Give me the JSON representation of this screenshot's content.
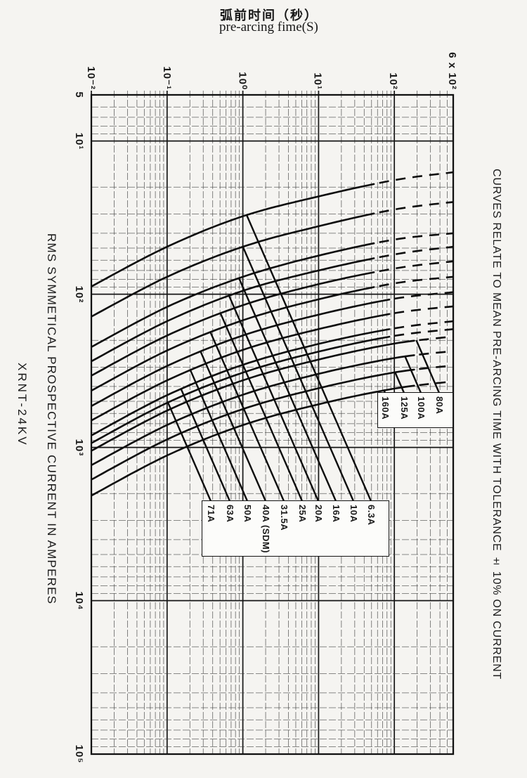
{
  "page": {
    "background": "#f5f4f1",
    "ink": "#141414"
  },
  "header": {
    "title_zh": "弧前时间（秒）",
    "title_en": "pre-arcing fime(S)"
  },
  "side_titles": {
    "left_axis_title": "RMS SYMMETICAL PROSPECTIVE CURRENT IN AMPERES",
    "model": "XRNT-24KV",
    "right_note": "CURVES RELATE TO MEAN PRE-ARCING TIME WITH TOLERANCE ± 10% ON CURRENT"
  },
  "axes": {
    "x_tick_labels": [
      "10⁻²",
      "10⁻¹",
      "10⁰",
      "10¹",
      "10²",
      "6 x 10²"
    ],
    "x_tick_values": [
      0.01,
      0.1,
      1,
      10,
      100,
      600
    ],
    "y_tick_labels": [
      "5",
      "10¹",
      "10²",
      "10³",
      "10⁴",
      "10⁵"
    ],
    "y_tick_values": [
      5,
      10,
      100,
      1000,
      10000,
      100000
    ]
  },
  "chart_data": {
    "type": "line",
    "title": "Pre-arcing time vs RMS symmetrical prospective current (XRNT-24KV fuses)",
    "xlabel": "pre-arcing time (s) — log scale, labels along top",
    "ylabel": "RMS symmetical prospective current in amperes — log scale, labels along left",
    "x_range": [
      0.01,
      600
    ],
    "y_range": [
      5,
      100000
    ],
    "grid": "log-log, major decade lines with 2-9 minor lines",
    "legend_position": "in-plot label boxes with leader lines",
    "tolerance_note": "curves are mean pre-arcing time, tolerance ± 10% on current",
    "sample_times_s": [
      0.01,
      0.1,
      1,
      10,
      100,
      600
    ],
    "series": [
      {
        "name": "6.3A",
        "currents_A": [
          89,
          49,
          31,
          23,
          18,
          16
        ],
        "dashed_after_s": 60
      },
      {
        "name": "10A",
        "currents_A": [
          140,
          77,
          49,
          36,
          28,
          25
        ],
        "dashed_after_s": 60
      },
      {
        "name": "16A",
        "currents_A": [
          221,
          121,
          77,
          56,
          44,
          40
        ],
        "dashed_after_s": 60
      },
      {
        "name": "20A",
        "currents_A": [
          274,
          150,
          95,
          70,
          55,
          49
        ],
        "dashed_after_s": 60
      },
      {
        "name": "25A",
        "currents_A": [
          340,
          186,
          118,
          86,
          68,
          61
        ],
        "dashed_after_s": 60
      },
      {
        "name": "31.5A",
        "currents_A": [
          426,
          233,
          148,
          108,
          85,
          77
        ],
        "dashed_after_s": 60
      },
      {
        "name": "40A (SDM)",
        "currents_A": [
          537,
          294,
          186,
          136,
          107,
          97
        ],
        "dashed_after_s": 90
      },
      {
        "name": "50A",
        "currents_A": [
          667,
          365,
          231,
          169,
          133,
          120
        ],
        "dashed_after_s": 90
      },
      {
        "name": "63A",
        "currents_A": [
          835,
          456,
          289,
          211,
          167,
          150
        ],
        "dashed_after_s": 90
      },
      {
        "name": "71A",
        "currents_A": [
          937,
          512,
          325,
          237,
          187,
          169
        ],
        "dashed_after_s": 90
      },
      {
        "name": "80A",
        "currents_A": [
          1052,
          575,
          365,
          267,
          210,
          189
        ],
        "dashed_after_s": 200
      },
      {
        "name": "100A",
        "currents_A": [
          1306,
          714,
          453,
          331,
          261,
          235
        ],
        "dashed_after_s": 200
      },
      {
        "name": "125A",
        "currents_A": [
          1622,
          887,
          562,
          411,
          324,
          292
        ],
        "dashed_after_s": 200
      },
      {
        "name": "160A",
        "currents_A": [
          2063,
          1128,
          715,
          523,
          413,
          371
        ],
        "dashed_after_s": 200
      }
    ]
  },
  "label_boxes": {
    "upper": {
      "labels": [
        {
          "text": "160A",
          "series": "160A"
        },
        {
          "text": "125A",
          "series": "125A"
        },
        {
          "text": "100A",
          "series": "100A"
        },
        {
          "text": "80A",
          "series": "80A"
        }
      ]
    },
    "lower": {
      "labels": [
        {
          "text": "71A",
          "series": "71A"
        },
        {
          "text": "63A",
          "series": "63A"
        },
        {
          "text": "50A",
          "series": "50A"
        },
        {
          "text": "40A (SDM)",
          "series": "40A (SDM)"
        },
        {
          "text": "31.5A",
          "series": "31.5A"
        },
        {
          "text": "25A",
          "series": "25A"
        },
        {
          "text": "20A",
          "series": "20A"
        },
        {
          "text": "16A",
          "series": "16A"
        },
        {
          "text": "10A",
          "series": "10A"
        },
        {
          "text": "6.3A",
          "series": "6.3A"
        }
      ]
    }
  }
}
